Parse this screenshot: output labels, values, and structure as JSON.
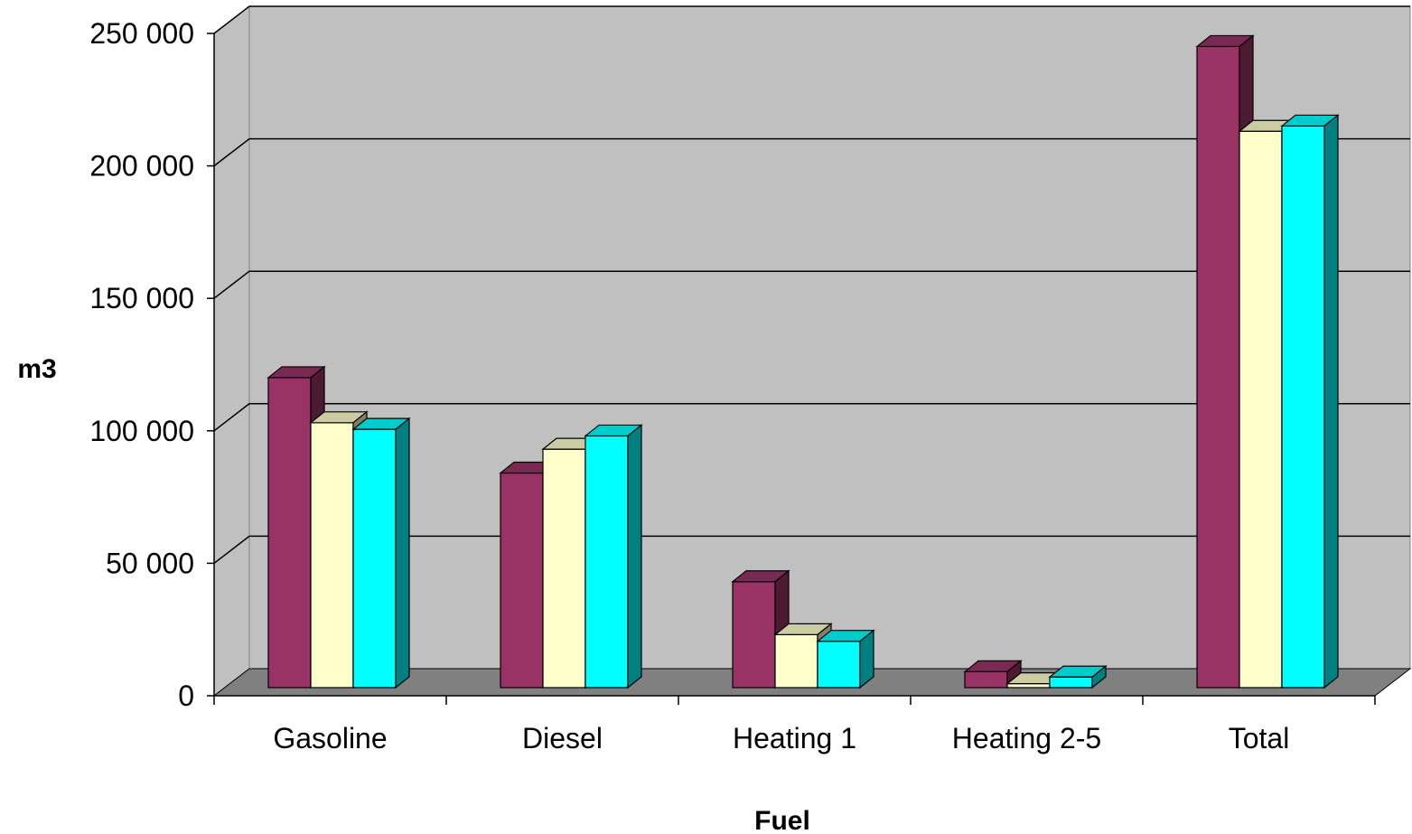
{
  "chart_data": {
    "type": "bar",
    "style": "3d-clustered-column",
    "title": "",
    "xlabel": "Fuel",
    "ylabel": "m3",
    "categories": [
      "Gasoline",
      "Diesel",
      "Heating 1",
      "Heating 2-5",
      "Total"
    ],
    "series": [
      {
        "values": [
          117000,
          81000,
          40000,
          6000,
          242000
        ]
      },
      {
        "values": [
          100000,
          90000,
          20000,
          1500,
          210000
        ]
      },
      {
        "values": [
          97500,
          95000,
          17500,
          4000,
          212000
        ]
      }
    ],
    "ylim": [
      0,
      250000
    ],
    "yticks": [
      0,
      50000,
      100000,
      150000,
      200000,
      250000
    ],
    "ytick_labels": [
      "0",
      "50 000",
      "100 000",
      "150 000",
      "200 000",
      "250 000"
    ],
    "grid": true,
    "legend": "none",
    "colors": {
      "plot_wall": "#c0c0c0",
      "floor": "#808080",
      "series_front": [
        "#993366",
        "#ffffcc",
        "#00ffff"
      ],
      "series_top": [
        "#7a2952",
        "#cccca3",
        "#00cccc"
      ],
      "series_side": [
        "#4d1a33",
        "#808066",
        "#008080"
      ]
    }
  }
}
